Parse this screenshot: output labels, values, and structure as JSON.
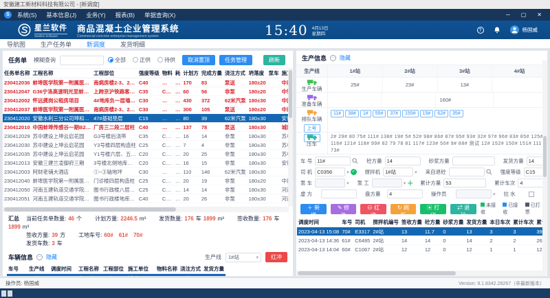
{
  "window": {
    "title": "安徽建工新材料科技有限公司 - [新调度]",
    "min": "─",
    "max": "▢",
    "close": "✕"
  },
  "menu": {
    "items": [
      "系统(S)",
      "基本信息(J)",
      "业务(Y)",
      "报表(B)",
      "单据查询(X)"
    ]
  },
  "header": {
    "brand": "星兰软件",
    "brand_en": "Sealine Software",
    "app_title": "商品混凝土企业管理系统",
    "app_subtitle": "Commercial concrete enterprise management system",
    "time": "15:40",
    "date": "4月13日",
    "weekday": "星期四",
    "user": "杨国威"
  },
  "tabs": [
    {
      "label": "导航图",
      "active": false
    },
    {
      "label": "生产任务单",
      "active": false
    },
    {
      "label": "新调度",
      "active": true
    },
    {
      "label": "发货明细",
      "active": false
    }
  ],
  "task_panel": {
    "title": "任务单",
    "search_label": "模糊查询",
    "radios": [
      {
        "label": "全部",
        "checked": true
      },
      {
        "label": "正供",
        "checked": false
      },
      {
        "label": "待供",
        "checked": false
      }
    ],
    "btn_cancel_top": "取消置顶",
    "btn_manage": "任务管理",
    "btn_refresh": "刷新",
    "table": {
      "headers": [
        "任务单名称",
        "工程名称",
        "工程部位",
        "强度等级",
        "物料",
        "耗",
        "计划方",
        "完成方量",
        "浇注方式",
        "坍落度",
        "泵车",
        "施工单位",
        "订单名称"
      ],
      "widths": [
        52,
        78,
        50,
        28,
        16,
        12,
        24,
        30,
        34,
        34,
        22,
        36,
        32
      ],
      "rows": [
        {
          "cls": "red",
          "cells": [
            "230412036",
            "蚌埠医学院第一附属医…",
            "南病房楼2-3、2…",
            "C40",
            "…",
            "…",
            "170",
            "83",
            "泵送",
            "180±20",
            "",
            "中建八局",
            "DD-2…"
          ]
        },
        {
          "cls": "red",
          "cells": [
            "230412047",
            "G36宁洛高速明光至蚌…",
            "上跨京沪铁路客…",
            "C35",
            "C…",
            "…",
            "60",
            "56",
            "非泵",
            "180±20",
            "",
            "中铁二…",
            "DD-2…"
          ]
        },
        {
          "cls": "red",
          "cells": [
            "230412002",
            "怀远龚岗公租房项目",
            "4#地库负一层墙…",
            "C30",
            "…",
            "…",
            "430",
            "372",
            "62米汽泵",
            "180±30",
            "",
            "中国二…",
            ""
          ]
        },
        {
          "cls": "red",
          "cells": [
            "230412037",
            "蚌埠医学院第一附属医…",
            "南病房楼2-3、2…",
            "C30",
            "…",
            "…",
            "300",
            "105",
            "泵送",
            "180±20",
            "",
            "中建八局",
            "DD-2…"
          ]
        },
        {
          "cls": "sel",
          "cells": [
            "230412020",
            "安徽水利三分公司坤和…",
            "47#基础垫层",
            "C15",
            "…",
            "…",
            "80",
            "39",
            "62米汽泵",
            "180±30",
            "",
            "安徽水…",
            "DD-2…"
          ]
        },
        {
          "cls": "red",
          "cells": [
            "230412010",
            "中国蚌埠传感谷一期B2…",
            "厂房三二段二层柱",
            "C40",
            "…",
            "…",
            "137",
            "78",
            "泵送",
            "180±30",
            "",
            "城建公司",
            ""
          ]
        },
        {
          "cls": "",
          "cells": [
            "230412029",
            "苏中建设上坤云启花园",
            "G3号楼后浇带",
            "C35",
            "C…",
            "…",
            "16",
            "14",
            "非泵",
            "180±30",
            "",
            "苏中建设",
            "DD-2…"
          ]
        },
        {
          "cls": "",
          "cells": [
            "230412030",
            "苏中建设上坤云启花园",
            "Y3号楼四层构造柱",
            "C25",
            "C…",
            "…",
            "7",
            "4",
            "非泵",
            "180±30",
            "",
            "苏中建设",
            "DD-2…"
          ]
        },
        {
          "cls": "",
          "cells": [
            "230412035",
            "苏中建设上坤云启花园",
            "Y1号楼六层、五…",
            "C20",
            "C…",
            "…",
            "20",
            "25",
            "非泵",
            "180±30",
            "",
            "苏中建设",
            "DD-2…"
          ]
        },
        {
          "cls": "",
          "cells": [
            "230412013",
            "安徽三建兰凌御府三期",
            "3号楼北侧地库…",
            "C20",
            "C…",
            "…",
            "16",
            "15",
            "非泵",
            "180±30",
            "",
            "安徽三建",
            "DD-2…"
          ]
        },
        {
          "cls": "",
          "cells": [
            "230412003",
            "阿财老铺大酒店",
            "①~③轴地坪",
            "C30",
            "…",
            "…",
            "110",
            "146",
            "62米汽泵",
            "180±30",
            "",
            "",
            ""
          ]
        },
        {
          "cls": "",
          "cells": [
            "230412040",
            "蚌埠医学院第一附属医…",
            "门诊楼四层构造柱",
            "C25",
            "C…",
            "…",
            "20",
            "19",
            "非泵",
            "180±20",
            "",
            "中建八局",
            "DD-2…"
          ]
        },
        {
          "cls": "",
          "cells": [
            "230412050",
            "河南五建轨道交通学院…",
            "图书行政楼八层…",
            "C25",
            "C…",
            "…",
            "14",
            "14",
            "非泵",
            "180±30",
            "",
            "河南五建",
            "DD-2…"
          ]
        },
        {
          "cls": "",
          "cells": [
            "230412051",
            "河南五建轨道交通学院…",
            "图书行政楼地库…",
            "C40",
            "C…",
            "…",
            "20",
            "26",
            "非泵",
            "180±30",
            "",
            "河南五建",
            "DD-2…"
          ]
        }
      ]
    }
  },
  "summary": {
    "title": "汇总",
    "row1": [
      {
        "label": "当前任务单数量:",
        "value": "46",
        "unit": "个"
      },
      {
        "label": "计划方量:",
        "value": "2246.5",
        "unit": "m³"
      },
      {
        "label": "发货数量:",
        "value": "176",
        "unit": "车",
        "value2": "1899",
        "unit2": "m³"
      },
      {
        "label": "签收数量:",
        "value": "176",
        "unit": "车",
        "value2": "1899",
        "unit2": "m³"
      }
    ],
    "row2": [
      {
        "label": "签收方量:",
        "value": "39",
        "unit": "方"
      },
      {
        "label": "工地车号:",
        "value": "60#　61#　70#",
        "unit": ""
      }
    ],
    "row3": [
      {
        "label": "发货车数:",
        "value": "3",
        "unit": "车"
      }
    ]
  },
  "vehicle_panel": {
    "title": "车辆信息",
    "hide": "隐藏",
    "line_label": "生产线",
    "line_value": "1#站",
    "btn_hongchong": "红冲",
    "table": {
      "headers": [
        "车号",
        "生产线",
        "调度时间",
        "工程名称",
        "工程部位",
        "施工单位",
        "物料名称",
        "浇注方式",
        "发货方量"
      ],
      "widths": [
        30,
        32,
        40,
        36,
        36,
        42,
        32,
        34,
        34
      ],
      "rows": [
        {
          "cls": "sel",
          "cells": [
            "56#",
            "1#站",
            "2023-0…",
            "中国蚌…",
            "厂房三…",
            "城建公司",
            "C40",
            "泵送",
            "10"
          ]
        },
        {
          "cls": "blue",
          "cells": [
            "25#",
            "1#站",
            "2023-0…",
            "蚌埠医…",
            "南病房…",
            "中建八局",
            "C30",
            "泵送",
            "12"
          ]
        }
      ]
    }
  },
  "production": {
    "title": "生产信息",
    "hide": "隐藏",
    "line_label": "生产线",
    "stations": [
      "1#站",
      "2#站",
      "3#站",
      "4#站"
    ],
    "producing": {
      "name": "生产车辆",
      "values": [
        "25#",
        "23#",
        "13#",
        ""
      ]
    },
    "preparing": {
      "name": "准备车辆",
      "values": [
        "",
        "",
        "160#",
        ""
      ]
    },
    "queue": {
      "name": "排队车辆",
      "btn_up": "上号",
      "btn_down": "下号",
      "tags": [
        "11#",
        "38#",
        "1#",
        "55#",
        "37#",
        "155#",
        "15#",
        "62#",
        "35#"
      ]
    },
    "pressed": {
      "name": "压车",
      "list": [
        "2#",
        "29#",
        "80",
        "75#",
        "111#",
        "138#",
        "19#",
        "5#",
        "52#",
        "98#",
        "86#",
        "87#",
        "95#",
        "93#",
        "32#",
        "97#",
        "96#",
        "83#",
        "85#",
        "125#",
        "116#",
        "121#",
        "118#",
        "99#",
        "82",
        "79",
        "78",
        "81",
        "117#",
        "123#",
        "50#",
        "9#",
        "88#",
        "测试",
        "12#",
        "152#",
        "150#",
        "151#",
        "111",
        "73#"
      ]
    }
  },
  "dispatch_form": {
    "che_hao": {
      "label": "车  号",
      "value": "11#"
    },
    "tong_fl": {
      "label": "砼方量",
      "value": "14"
    },
    "shajiang": {
      "label": "砂浆方量",
      "value": ""
    },
    "fahuo": {
      "label": "发货方量",
      "value": "14"
    },
    "siji": {
      "label": "司  机",
      "value": "C0356"
    },
    "jiaobanji": {
      "label": "搅拌机",
      "value": "1#站"
    },
    "laizi": {
      "label": "来自退砼",
      "value": ""
    },
    "qiangdu": {
      "label": "强度等级",
      "value": "C15"
    },
    "bengche": {
      "label": "泵  车",
      "value": ""
    },
    "benggong": {
      "label": "泵  工",
      "value": ""
    },
    "leiji_fl": {
      "label": "累计方量",
      "value": "53"
    },
    "leiji_cc": {
      "label": "累计车次",
      "value": "4"
    },
    "xufang": {
      "label": "虚  方",
      "value": ""
    },
    "pan_fl": {
      "label": "盘方量",
      "value": "4"
    },
    "caozuoyuan": {
      "label": "操作员",
      "value": ""
    },
    "lashui": {
      "label": "拉  水",
      "value": ""
    },
    "btn_add": "新增",
    "btn_edit": "修改",
    "btn_hongchong": "红冲",
    "btn_refresh": "刷新",
    "btn_print": "打印",
    "btn_return": "退砼",
    "legend": [
      {
        "label": "未接收",
        "color": "#19be6b"
      },
      {
        "label": "已接收",
        "color": "#2d8cf0"
      },
      {
        "label": "已打票",
        "color": "#515a6e"
      }
    ]
  },
  "dispatch_table": {
    "headers": [
      "调度时间",
      "车号",
      "司机",
      "搅拌机编号",
      "签收方量",
      "砼方量",
      "砂浆方量",
      "发货方量",
      "本日车次",
      "累计车次",
      "累计方量",
      "泵车"
    ],
    "widths": [
      66,
      24,
      30,
      38,
      34,
      30,
      34,
      34,
      32,
      32,
      34,
      20
    ],
    "rows": [
      {
        "cls": "sel",
        "cells": [
          "2023-04-13 15:08",
          "70#",
          "E3317",
          "2#站",
          "13",
          "11.7",
          "0",
          "13",
          "3",
          "3",
          "39",
          ""
        ]
      },
      {
        "cls": "",
        "cells": [
          "2023-04-13 14:36",
          "61#",
          "C6485",
          "2#站",
          "14",
          "14",
          "0",
          "14",
          "2",
          "2",
          "26",
          ""
        ]
      },
      {
        "cls": "",
        "cells": [
          "2023-04-13 14:04",
          "60#",
          "C1067",
          "2#站",
          "12",
          "12",
          "0",
          "12",
          "1",
          "1",
          "12",
          ""
        ]
      }
    ]
  },
  "statusbar": {
    "operator": "操作员: 杨国威",
    "version": "Version: 9.1.8342.28267（非最新版本）"
  },
  "colors": {
    "accent": "#1684fc",
    "selected_row": "#1467b2",
    "alert_red": "#d9232d"
  }
}
